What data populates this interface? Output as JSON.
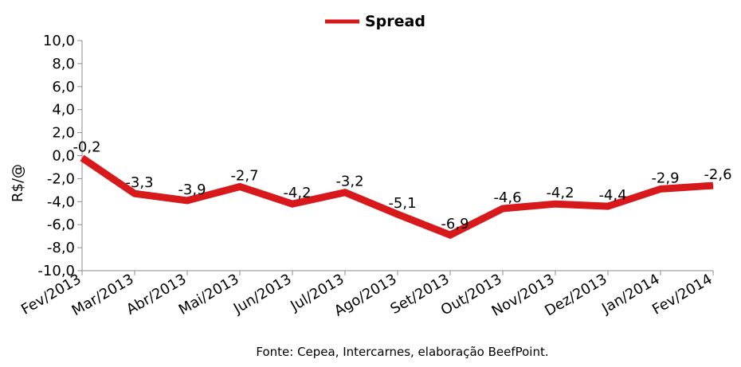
{
  "chart_data": {
    "type": "line",
    "categories": [
      "Fev/2013",
      "Mar/2013",
      "Abr/2013",
      "Mai/2013",
      "Jun/2013",
      "Jul/2013",
      "Ago/2013",
      "Set/2013",
      "Out/2013",
      "Nov/2013",
      "Dez/2013",
      "Jan/2014",
      "Fev/2014"
    ],
    "series": [
      {
        "name": "Spread",
        "values": [
          -0.2,
          -3.3,
          -3.9,
          -2.7,
          -4.2,
          -3.2,
          -5.1,
          -6.9,
          -4.6,
          -4.2,
          -4.4,
          -2.9,
          -2.6
        ],
        "labels": [
          "-0,2",
          "-3,3",
          "-3,9",
          "-2,7",
          "-4,2",
          "-3,2",
          "-5,1",
          "-6,9",
          "-4,6",
          "-4,2",
          "-4,4",
          "-2,9",
          "-2,6"
        ],
        "color": "#d7191c"
      }
    ],
    "ylabel": "R$/@",
    "ylim": [
      -10,
      10
    ],
    "yticks": [
      10,
      8,
      6,
      4,
      2,
      0,
      -2,
      -4,
      -6,
      -8,
      -10
    ],
    "ytick_labels": [
      "10,0",
      "8,0",
      "6,0",
      "4,0",
      "2,0",
      "0,0",
      "-2,0",
      "-4,0",
      "-6,0",
      "-8,0",
      "-10,0"
    ],
    "grid": false,
    "legend_position": "top-center"
  },
  "source_note": "Fonte: Cepea, Intercarnes, elaboração BeefPoint."
}
